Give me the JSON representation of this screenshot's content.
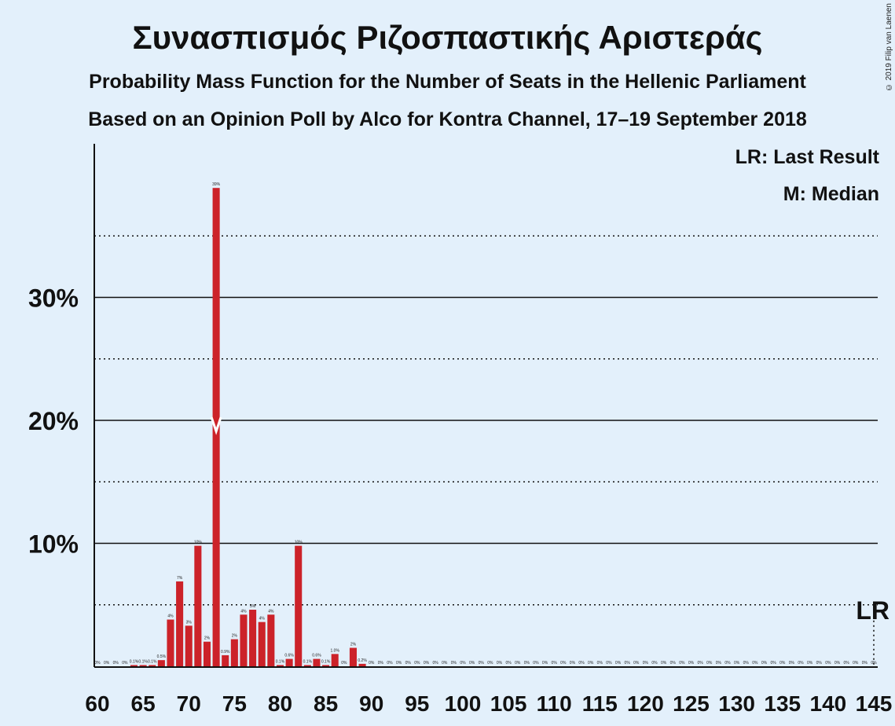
{
  "header": {
    "title": "Συνασπισμός Ριζοσπαστικής Αριστεράς",
    "subtitle1": "Probability Mass Function for the Number of Seats in the Hellenic Parliament",
    "subtitle2": "Based on an Opinion Poll by Alco for Kontra Channel, 17–19 September 2018",
    "copyright": "© 2019 Filip van Laenen"
  },
  "legend": {
    "last_result": "LR: Last Result",
    "median": "M: Median"
  },
  "chart_data": {
    "type": "bar",
    "bar_color": "#cc2229",
    "background": "#e3f0fb",
    "xlim": [
      60,
      145
    ],
    "ylim": [
      0,
      40
    ],
    "x_ticks": [
      60,
      65,
      70,
      75,
      80,
      85,
      90,
      95,
      100,
      105,
      110,
      115,
      120,
      125,
      130,
      135,
      140,
      145
    ],
    "y_ticks": [
      {
        "value": 10,
        "label": "10%"
      },
      {
        "value": 20,
        "label": "20%"
      },
      {
        "value": 30,
        "label": "30%"
      }
    ],
    "y_minor_dotted": [
      5,
      15,
      25,
      35
    ],
    "median": 73,
    "last_result": 145,
    "last_result_label": "LR",
    "median_marker": "M",
    "x": [
      60,
      61,
      62,
      63,
      64,
      65,
      66,
      67,
      68,
      69,
      70,
      71,
      72,
      73,
      74,
      75,
      76,
      77,
      78,
      79,
      80,
      81,
      82,
      83,
      84,
      85,
      86,
      87,
      88,
      89,
      90,
      91,
      92,
      93,
      94,
      95,
      96,
      97,
      98,
      99,
      100,
      101,
      102,
      103,
      104,
      105,
      106,
      107,
      108,
      109,
      110,
      111,
      112,
      113,
      114,
      115,
      116,
      117,
      118,
      119,
      120,
      121,
      122,
      123,
      124,
      125,
      126,
      127,
      128,
      129,
      130,
      131,
      132,
      133,
      134,
      135,
      136,
      137,
      138,
      139,
      140,
      141,
      142,
      143,
      144,
      145
    ],
    "values": [
      0,
      0,
      0,
      0,
      0.1,
      0.1,
      0.1,
      0.5,
      3.8,
      6.9,
      3.3,
      9.8,
      2.0,
      38.9,
      0.9,
      2.2,
      4.2,
      4.6,
      3.6,
      4.2,
      0.1,
      0.6,
      9.8,
      0.1,
      0.6,
      0.1,
      1.0,
      0,
      1.5,
      0.2,
      0,
      0,
      0,
      0,
      0,
      0,
      0,
      0,
      0,
      0,
      0,
      0,
      0,
      0,
      0,
      0,
      0,
      0,
      0,
      0,
      0,
      0,
      0,
      0,
      0,
      0,
      0,
      0,
      0,
      0,
      0,
      0,
      0,
      0,
      0,
      0,
      0,
      0,
      0,
      0,
      0,
      0,
      0,
      0,
      0,
      0,
      0,
      0,
      0,
      0,
      0,
      0,
      0,
      0,
      0,
      0
    ],
    "labels": [
      "0%",
      "0%",
      "0%",
      "0%",
      "0.1%",
      "0.1%",
      "0.1%",
      "0.5%",
      "4%",
      "7%",
      "3%",
      "10%",
      "2%",
      "39%",
      "0.9%",
      "2%",
      "4%",
      "5%",
      "4%",
      "4%",
      "0.1%",
      "0.6%",
      "10%",
      "0.1%",
      "0.6%",
      "0.1%",
      "1.0%",
      "0%",
      "2%",
      "0.2%",
      "0%",
      "0%",
      "0%",
      "0%",
      "0%",
      "0%",
      "0%",
      "0%",
      "0%",
      "0%",
      "0%",
      "0%",
      "0%",
      "0%",
      "0%",
      "0%",
      "0%",
      "0%",
      "0%",
      "0%",
      "0%",
      "0%",
      "0%",
      "0%",
      "0%",
      "0%",
      "0%",
      "0%",
      "0%",
      "0%",
      "0%",
      "0%",
      "0%",
      "0%",
      "0%",
      "0%",
      "0%",
      "0%",
      "0%",
      "0%",
      "0%",
      "0%",
      "0%",
      "0%",
      "0%",
      "0%",
      "0%",
      "0%",
      "0%",
      "0%",
      "0%",
      "0%",
      "0%",
      "0%",
      "0%",
      "0%"
    ]
  }
}
